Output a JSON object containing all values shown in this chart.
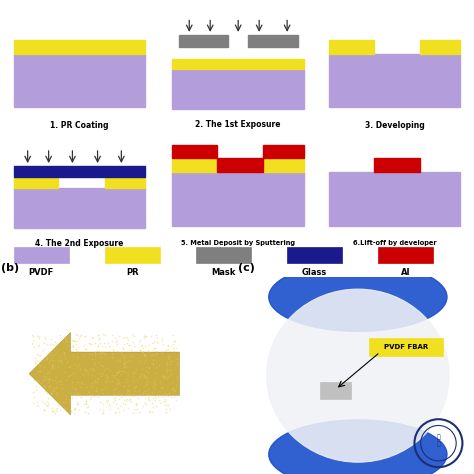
{
  "bg_color": "#ffffff",
  "pvdf_color": "#b39ddb",
  "pr_color": "#f0e020",
  "mask_color": "#7f7f7f",
  "glass_color": "#1a1a8c",
  "al_color": "#cc0000",
  "text_color": "#000000",
  "fig_width": 4.74,
  "fig_height": 4.74,
  "dpi": 100,
  "legend_items": [
    {
      "label": "PVDF",
      "color": "#b39ddb"
    },
    {
      "label": "PR",
      "color": "#f0e020"
    },
    {
      "label": "Mask",
      "color": "#7f7f7f"
    },
    {
      "label": "Glass",
      "color": "#1a1a8c"
    },
    {
      "label": "Al",
      "color": "#cc0000"
    }
  ],
  "step_labels": [
    "1. PR Coating",
    "2. The 1st Exposure",
    "3. Developing",
    "4. The 2nd Exposure",
    "5. Metal Deposit by Sputtering",
    "6.Lift-off by developer"
  ]
}
